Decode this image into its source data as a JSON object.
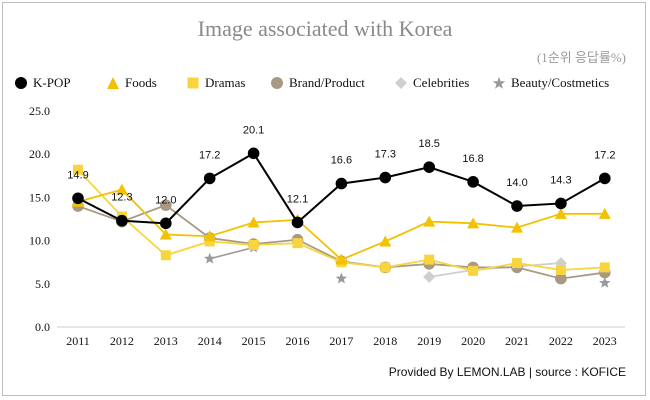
{
  "title": "Image associated with Korea",
  "unit_label": "(1순위 응답률%)",
  "footer": "Provided By LEMON.LAB | source : KOFICE",
  "legend_entries": [
    "K-POP",
    "Foods",
    "Dramas",
    "Brand/Product",
    "Celebrities",
    "Beauty/Costmetics"
  ],
  "chart_data": {
    "type": "line",
    "title": "Image associated with Korea",
    "x": [
      "2011",
      "2012",
      "2013",
      "2014",
      "2015",
      "2016",
      "2017",
      "2018",
      "2019",
      "2020",
      "2021",
      "2022",
      "2023"
    ],
    "ylim": [
      0,
      25
    ],
    "yticks": [
      "0.0",
      "5.0",
      "10.0",
      "15.0",
      "20.0",
      "25.0"
    ],
    "grid": false,
    "legend_position": "top-left",
    "series": [
      {
        "name": "K-POP",
        "color": "#000000",
        "marker": "circle",
        "values": [
          14.9,
          12.3,
          12.0,
          17.2,
          20.1,
          12.1,
          16.6,
          17.3,
          18.5,
          16.8,
          14.0,
          14.3,
          17.2
        ],
        "labels": [
          "14.9",
          "12.3",
          "12.0",
          "17.2",
          "20.1",
          "12.1",
          "16.6",
          "17.3",
          "18.5",
          "16.8",
          "14.0",
          "14.3",
          "17.2"
        ]
      },
      {
        "name": "Foods",
        "color": "#f2c200",
        "marker": "triangle",
        "values": [
          14.5,
          15.9,
          10.7,
          10.5,
          12.1,
          12.4,
          7.8,
          9.9,
          12.2,
          12.0,
          11.5,
          13.1,
          13.1
        ]
      },
      {
        "name": "Dramas",
        "color": "#f8d53f",
        "marker": "square",
        "values": [
          18.2,
          12.8,
          8.3,
          9.9,
          9.5,
          9.7,
          7.5,
          6.9,
          7.8,
          6.5,
          7.4,
          6.6,
          6.9
        ]
      },
      {
        "name": "Brand/Product",
        "color": "#a89a82",
        "marker": "circle",
        "values": [
          14.0,
          12.2,
          14.1,
          10.3,
          9.6,
          10.1,
          7.6,
          6.9,
          7.3,
          6.9,
          6.9,
          5.6,
          6.3
        ]
      },
      {
        "name": "Celebrities",
        "color": "#cfcfcf",
        "marker": "diamond",
        "values": [
          null,
          null,
          null,
          null,
          null,
          null,
          null,
          null,
          5.8,
          6.6,
          7.0,
          7.4,
          null
        ]
      },
      {
        "name": "Beauty/Costmetics",
        "color": "#9a9a9a",
        "marker": "star",
        "values": [
          null,
          null,
          null,
          7.9,
          9.2,
          null,
          5.6,
          null,
          null,
          null,
          null,
          null,
          5.1
        ]
      }
    ]
  }
}
